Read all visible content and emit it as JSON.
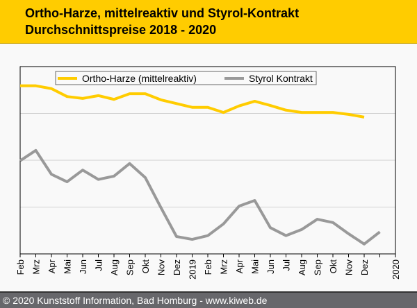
{
  "title_line1": "Ortho-Harze, mittelreaktiv und Styrol-Kontrakt",
  "title_line2": "Durchschnittspreise 2018 - 2020",
  "footer": "© 2020 Kunststoff Information, Bad Homburg - www.kiweb.de",
  "colors": {
    "banner": "#ffcc00",
    "ortho": "#ffcc00",
    "styrol": "#999999",
    "footer": "#67676b"
  },
  "chart_data": {
    "type": "line",
    "title": "Ortho-Harze, mittelreaktiv und Styrol-Kontrakt Durchschnittspreise 2018 - 2020",
    "xlabel": "",
    "ylabel": "",
    "ylim": [
      0,
      4
    ],
    "y_gridlines": [
      1,
      2,
      3
    ],
    "grid": true,
    "legend_position": "top",
    "categories": [
      "Feb",
      "Mrz",
      "Apr",
      "Mai",
      "Jun",
      "Jul",
      "Aug",
      "Sep",
      "Okt",
      "Nov",
      "Dez",
      "2019",
      "Feb",
      "Mrz",
      "Apr",
      "Mai",
      "Jun",
      "Jul",
      "Aug",
      "Sep",
      "Okt",
      "Nov",
      "Dez",
      "2020"
    ],
    "series": [
      {
        "name": "Ortho-Harze (mittelreaktiv)",
        "color": "#ffcc00",
        "values": [
          3.59,
          3.59,
          3.53,
          3.36,
          3.32,
          3.38,
          3.3,
          3.42,
          3.42,
          3.29,
          3.21,
          3.13,
          3.13,
          3.02,
          3.16,
          3.26,
          3.17,
          3.07,
          3.02,
          3.02,
          3.02,
          2.98,
          2.92,
          null
        ]
      },
      {
        "name": "Styrol Kontrakt",
        "color": "#999999",
        "values": [
          1.99,
          2.21,
          1.7,
          1.54,
          1.79,
          1.59,
          1.66,
          1.93,
          1.63,
          0.99,
          0.37,
          0.31,
          0.39,
          0.64,
          1.02,
          1.14,
          0.56,
          0.39,
          0.52,
          0.74,
          0.67,
          0.43,
          0.21,
          0.47
        ]
      }
    ]
  }
}
